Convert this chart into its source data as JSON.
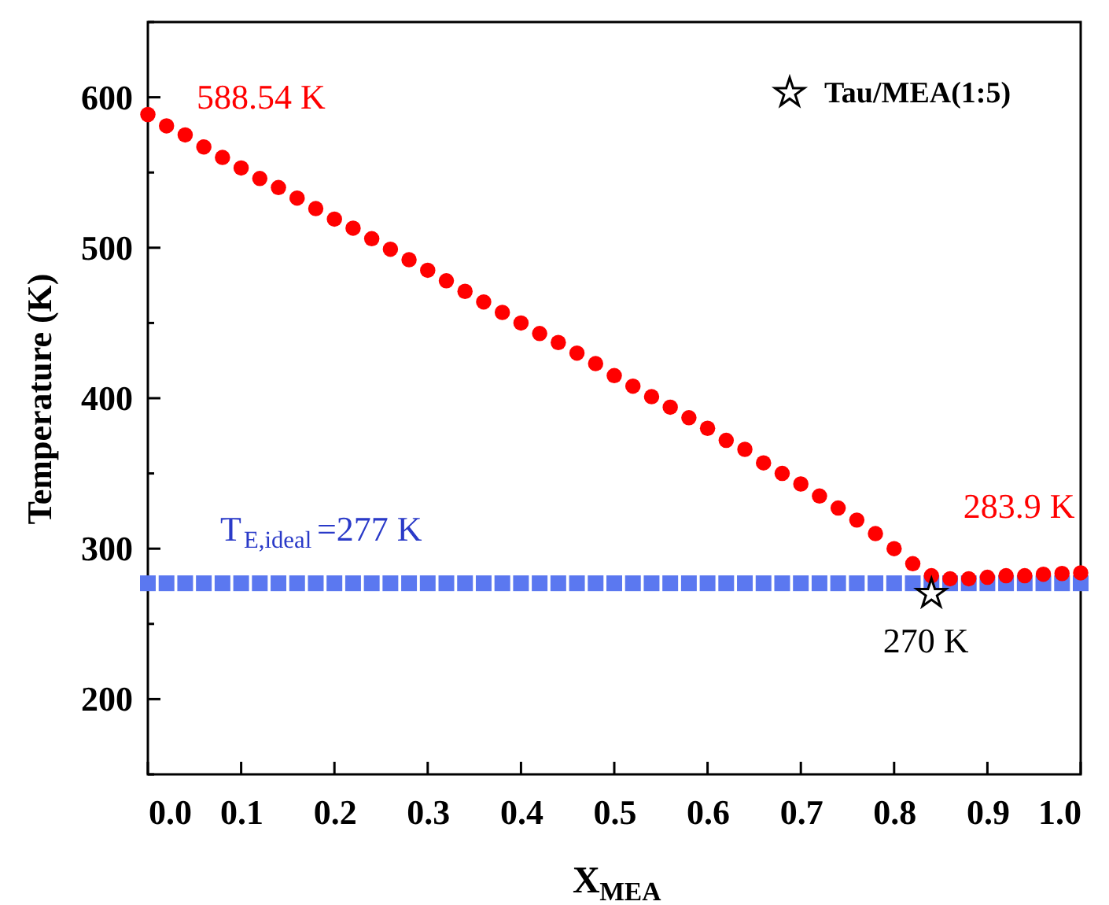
{
  "chart_data": {
    "type": "scatter",
    "xlabel": "X$_{MEA}$",
    "ylabel": "Temperature (K)",
    "xlim": [
      0,
      1
    ],
    "ylim": [
      150,
      650
    ],
    "xticks": [
      {
        "value": 0,
        "label": "0.0"
      },
      0.1,
      0.2,
      0.3,
      0.4,
      0.5,
      0.6,
      0.7,
      0.8,
      0.9,
      {
        "value": 1,
        "label": "1.0"
      }
    ],
    "yticks": [
      {
        "value": 150,
        "label": null
      },
      200,
      {
        "value": 250,
        "label": null
      },
      300,
      {
        "value": 350,
        "label": null
      },
      400,
      {
        "value": 450,
        "label": null
      },
      500,
      {
        "value": 550,
        "label": null
      },
      600,
      {
        "value": 650,
        "label": null
      }
    ],
    "x": [
      0,
      0.02,
      0.04,
      0.06,
      0.08,
      0.1,
      0.12,
      0.14,
      0.16,
      0.18,
      0.2,
      0.22,
      0.24,
      0.26,
      0.28,
      0.3,
      0.32,
      0.34,
      0.36,
      0.38,
      0.4,
      0.42,
      0.44,
      0.46,
      0.48,
      0.5,
      0.52,
      0.54,
      0.56,
      0.58,
      0.6,
      0.62,
      0.64,
      0.66,
      0.68,
      0.7,
      0.72,
      0.74,
      0.76,
      0.78,
      0.8,
      0.82,
      0.84,
      0.86,
      0.88,
      0.9,
      0.92,
      0.94,
      0.96,
      0.98,
      1
    ],
    "series": [
      {
        "color": "#5b78f0",
        "marker": "square",
        "values": [
          277,
          277,
          277,
          277,
          277,
          277,
          277,
          277,
          277,
          277,
          277,
          277,
          277,
          277,
          277,
          277,
          277,
          277,
          277,
          277,
          277,
          277,
          277,
          277,
          277,
          277,
          277,
          277,
          277,
          277,
          277,
          277,
          277,
          277,
          277,
          277,
          277,
          277,
          277,
          277,
          277,
          277,
          277,
          277,
          277,
          277,
          277,
          277,
          277,
          277,
          277
        ]
      },
      {
        "color": "#ff0000",
        "marker": "circle",
        "values": [
          588.54,
          581,
          575,
          567,
          560,
          553,
          546,
          540,
          533,
          526,
          519,
          513,
          506,
          499,
          492,
          485,
          478,
          471,
          464,
          457,
          450,
          443,
          437,
          430,
          423,
          415,
          408,
          401,
          394,
          387,
          380,
          372,
          366,
          357,
          350,
          343,
          335,
          327,
          319,
          310,
          300,
          290,
          282,
          280,
          280,
          281,
          282,
          282,
          283,
          283.5,
          283.9
        ]
      },
      {
        "name": "Tau/MEA(1:5)",
        "color": "#000000",
        "marker": "star",
        "x": [
          0.84
        ],
        "values": [
          270
        ]
      }
    ],
    "annotations": [
      {
        "text": "588.54 K",
        "x": 0,
        "y": 588.54
      },
      {
        "text": "283.9 K",
        "x": 1,
        "y": 283.9
      },
      {
        "text": "T$_{E,ideal}$=277 K",
        "x": 0,
        "y": 277
      },
      {
        "text": "270 K",
        "x": 0.84,
        "y": 270
      }
    ],
    "legend": "top right",
    "grid": false
  }
}
